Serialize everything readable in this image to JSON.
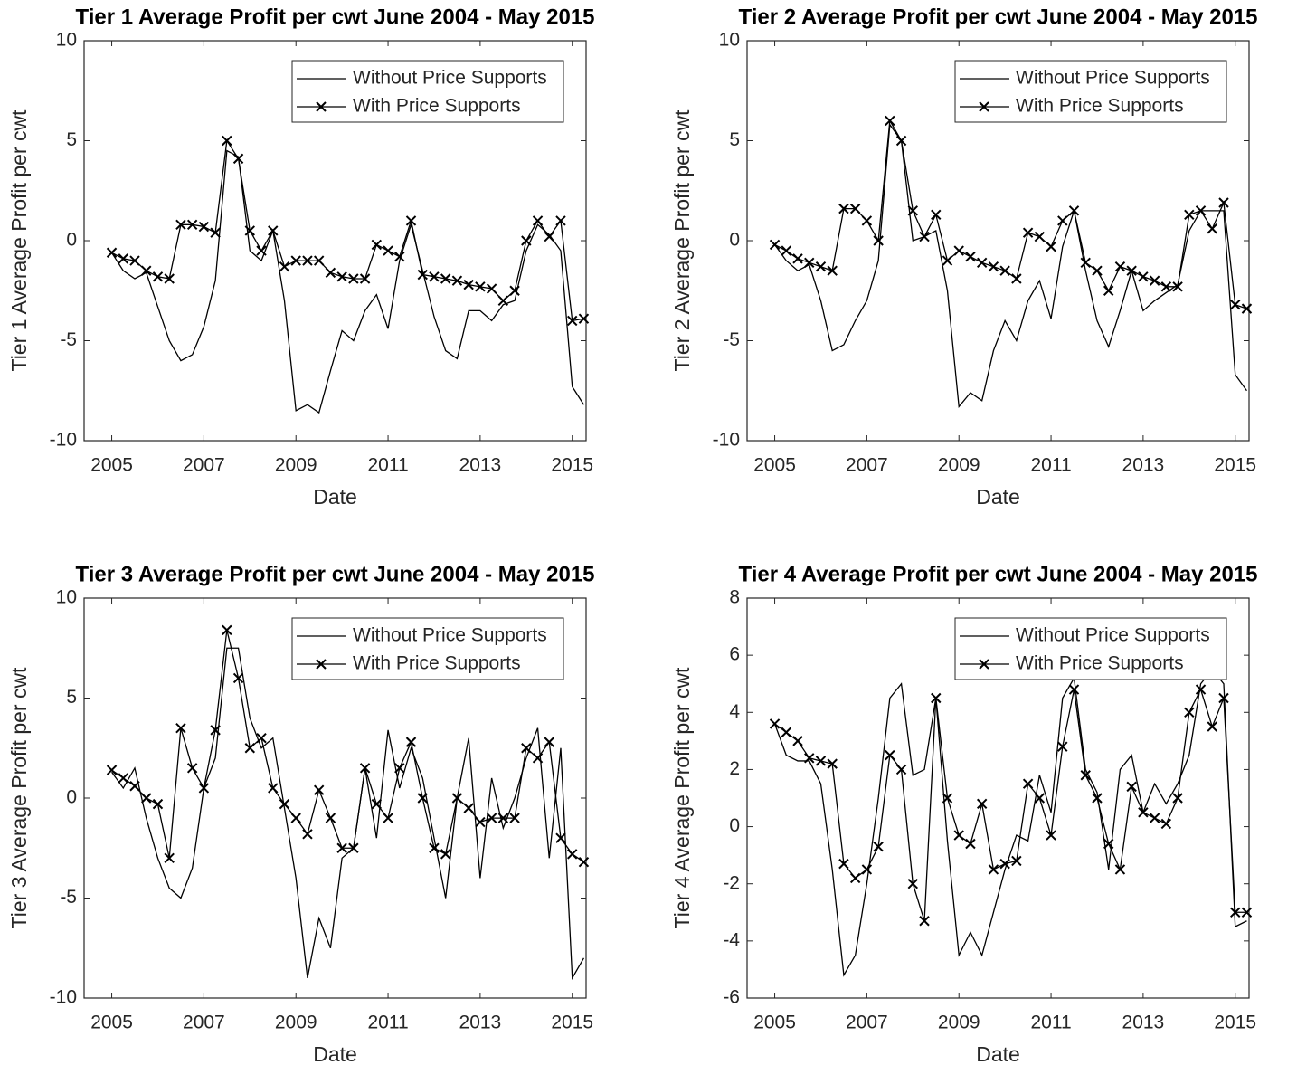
{
  "chart_data": [
    {
      "type": "line",
      "title": "Tier 1 Average Profit per cwt June 2004 - May 2015",
      "xlabel": "Date",
      "ylabel": "Tier 1 Average Profit per cwt",
      "xlim": [
        2004.4,
        2015.3
      ],
      "xticks": [
        2005,
        2007,
        2009,
        2011,
        2013,
        2015
      ],
      "ylim": [
        -10,
        10
      ],
      "yticks": [
        -10,
        -5,
        0,
        5,
        10
      ],
      "legend": "upper right",
      "x": [
        2005,
        2005.25,
        2005.5,
        2005.75,
        2006,
        2006.25,
        2006.5,
        2006.75,
        2007,
        2007.25,
        2007.5,
        2007.75,
        2008,
        2008.25,
        2008.5,
        2008.75,
        2009,
        2009.25,
        2009.5,
        2009.75,
        2010,
        2010.25,
        2010.5,
        2010.75,
        2011,
        2011.25,
        2011.5,
        2011.75,
        2012,
        2012.25,
        2012.5,
        2012.75,
        2013,
        2013.25,
        2013.5,
        2013.75,
        2014,
        2014.25,
        2014.5,
        2014.75,
        2015,
        2015.25
      ],
      "series": [
        {
          "name": "Without Price Supports",
          "color": "#000000",
          "marker": "none",
          "values": [
            -0.6,
            -1.5,
            -1.9,
            -1.6,
            -3.3,
            -5.0,
            -6.0,
            -5.7,
            -4.3,
            -2.0,
            4.5,
            4.2,
            -0.5,
            -1.0,
            0.5,
            -3.0,
            -8.5,
            -8.2,
            -8.6,
            -6.5,
            -4.5,
            -5.0,
            -3.5,
            -2.7,
            -4.4,
            -1.0,
            0.8,
            -1.5,
            -3.8,
            -5.5,
            -5.9,
            -3.5,
            -3.5,
            -4.0,
            -3.2,
            -3.0,
            -0.5,
            0.8,
            0.3,
            -0.5,
            -7.3,
            -8.2
          ]
        },
        {
          "name": "With Price Supports",
          "color": "#000000",
          "marker": "x",
          "values": [
            -0.6,
            -0.9,
            -1.0,
            -1.5,
            -1.8,
            -1.9,
            0.8,
            0.8,
            0.7,
            0.4,
            5.0,
            4.1,
            0.5,
            -0.5,
            0.5,
            -1.3,
            -1.0,
            -1.0,
            -1.0,
            -1.6,
            -1.8,
            -1.9,
            -1.9,
            -0.2,
            -0.5,
            -0.8,
            1.0,
            -1.7,
            -1.8,
            -1.9,
            -2.0,
            -2.2,
            -2.3,
            -2.4,
            -3.0,
            -2.5,
            0.0,
            1.0,
            0.2,
            1.0,
            -4.0,
            -3.9
          ]
        }
      ]
    },
    {
      "type": "line",
      "title": "Tier 2 Average Profit per cwt June 2004 - May 2015",
      "xlabel": "Date",
      "ylabel": "Tier 2 Average Profit per cwt",
      "xlim": [
        2004.4,
        2015.3
      ],
      "xticks": [
        2005,
        2007,
        2009,
        2011,
        2013,
        2015
      ],
      "ylim": [
        -10,
        10
      ],
      "yticks": [
        -10,
        -5,
        0,
        5,
        10
      ],
      "legend": "upper right",
      "x": [
        2005,
        2005.25,
        2005.5,
        2005.75,
        2006,
        2006.25,
        2006.5,
        2006.75,
        2007,
        2007.25,
        2007.5,
        2007.75,
        2008,
        2008.25,
        2008.5,
        2008.75,
        2009,
        2009.25,
        2009.5,
        2009.75,
        2010,
        2010.25,
        2010.5,
        2010.75,
        2011,
        2011.25,
        2011.5,
        2011.75,
        2012,
        2012.25,
        2012.5,
        2012.75,
        2013,
        2013.25,
        2013.5,
        2013.75,
        2014,
        2014.25,
        2014.5,
        2014.75,
        2015,
        2015.25
      ],
      "series": [
        {
          "name": "Without Price Supports",
          "color": "#000000",
          "marker": "none",
          "values": [
            -0.2,
            -1.0,
            -1.5,
            -1.2,
            -3.0,
            -5.5,
            -5.2,
            -4.0,
            -3.0,
            -1.0,
            5.8,
            5.0,
            0.0,
            0.2,
            0.5,
            -2.5,
            -8.3,
            -7.6,
            -8.0,
            -5.5,
            -4.0,
            -5.0,
            -3.0,
            -2.0,
            -3.9,
            -0.3,
            1.5,
            -1.5,
            -4.0,
            -5.3,
            -3.5,
            -1.5,
            -3.5,
            -3.0,
            -2.6,
            -2.2,
            0.5,
            1.5,
            1.5,
            1.5,
            -6.7,
            -7.5
          ]
        },
        {
          "name": "With Price Supports",
          "color": "#000000",
          "marker": "x",
          "values": [
            -0.2,
            -0.5,
            -0.9,
            -1.1,
            -1.3,
            -1.5,
            1.6,
            1.6,
            1.0,
            0.0,
            6.0,
            5.0,
            1.5,
            0.2,
            1.3,
            -1.0,
            -0.5,
            -0.8,
            -1.1,
            -1.3,
            -1.5,
            -1.9,
            0.4,
            0.2,
            -0.3,
            1.0,
            1.5,
            -1.1,
            -1.5,
            -2.5,
            -1.3,
            -1.5,
            -1.8,
            -2.0,
            -2.3,
            -2.3,
            1.3,
            1.5,
            0.6,
            1.9,
            -3.2,
            -3.4
          ]
        }
      ]
    },
    {
      "type": "line",
      "title": "Tier 3 Average Profit per cwt June 2004 - May 2015",
      "xlabel": "Date",
      "ylabel": "Tier 3 Average Profit per cwt",
      "xlim": [
        2004.4,
        2015.3
      ],
      "xticks": [
        2005,
        2007,
        2009,
        2011,
        2013,
        2015
      ],
      "ylim": [
        -10,
        10
      ],
      "yticks": [
        -10,
        -5,
        0,
        5,
        10
      ],
      "legend": "upper right",
      "x": [
        2005,
        2005.25,
        2005.5,
        2005.75,
        2006,
        2006.25,
        2006.5,
        2006.75,
        2007,
        2007.25,
        2007.5,
        2007.75,
        2008,
        2008.25,
        2008.5,
        2008.75,
        2009,
        2009.25,
        2009.5,
        2009.75,
        2010,
        2010.25,
        2010.5,
        2010.75,
        2011,
        2011.25,
        2011.5,
        2011.75,
        2012,
        2012.25,
        2012.5,
        2012.75,
        2013,
        2013.25,
        2013.5,
        2013.75,
        2014,
        2014.25,
        2014.5,
        2014.75,
        2015,
        2015.25
      ],
      "series": [
        {
          "name": "Without Price Supports",
          "color": "#000000",
          "marker": "none",
          "values": [
            1.3,
            0.5,
            1.5,
            -1.0,
            -3.0,
            -4.5,
            -5.0,
            -3.5,
            0.5,
            2.0,
            7.5,
            7.5,
            4.0,
            2.5,
            3.0,
            -0.5,
            -4.0,
            -9.0,
            -6.0,
            -7.5,
            -3.0,
            -2.5,
            1.5,
            -2.0,
            3.4,
            0.5,
            2.5,
            1.0,
            -2.0,
            -5.0,
            0.0,
            3.0,
            -4.0,
            1.0,
            -1.5,
            0.0,
            2.0,
            3.5,
            -3.0,
            2.5,
            -9.0,
            -8.0
          ]
        },
        {
          "name": "With Price Supports",
          "color": "#000000",
          "marker": "x",
          "values": [
            1.4,
            1.0,
            0.6,
            0.0,
            -0.3,
            -3.0,
            3.5,
            1.5,
            0.5,
            3.4,
            8.4,
            6.0,
            2.5,
            3.0,
            0.5,
            -0.3,
            -1.0,
            -1.8,
            0.4,
            -1.0,
            -2.5,
            -2.5,
            1.5,
            -0.3,
            -1.0,
            1.5,
            2.8,
            0.0,
            -2.5,
            -2.8,
            0.0,
            -0.5,
            -1.2,
            -1.0,
            -1.0,
            -1.0,
            2.5,
            2.0,
            2.8,
            -2.0,
            -2.8,
            -3.2
          ]
        }
      ]
    },
    {
      "type": "line",
      "title": "Tier 4 Average Profit per cwt June 2004 - May 2015",
      "xlabel": "Date",
      "ylabel": "Tier 4 Average Profit per cwt",
      "xlim": [
        2004.4,
        2015.3
      ],
      "xticks": [
        2005,
        2007,
        2009,
        2011,
        2013,
        2015
      ],
      "ylim": [
        -6,
        8
      ],
      "yticks": [
        -6,
        -4,
        -2,
        0,
        2,
        4,
        6,
        8
      ],
      "legend": "upper right",
      "x": [
        2005,
        2005.25,
        2005.5,
        2005.75,
        2006,
        2006.25,
        2006.5,
        2006.75,
        2007,
        2007.25,
        2007.5,
        2007.75,
        2008,
        2008.25,
        2008.5,
        2008.75,
        2009,
        2009.25,
        2009.5,
        2009.75,
        2010,
        2010.25,
        2010.5,
        2010.75,
        2011,
        2011.25,
        2011.5,
        2011.75,
        2012,
        2012.25,
        2012.5,
        2012.75,
        2013,
        2013.25,
        2013.5,
        2013.75,
        2014,
        2014.25,
        2014.5,
        2014.75,
        2015,
        2015.25
      ],
      "series": [
        {
          "name": "Without Price Supports",
          "color": "#000000",
          "marker": "none",
          "values": [
            3.6,
            2.5,
            2.3,
            2.3,
            1.5,
            -1.5,
            -5.2,
            -4.5,
            -2.0,
            1.0,
            4.5,
            5.0,
            1.8,
            2.0,
            4.5,
            -0.5,
            -4.5,
            -3.7,
            -4.5,
            -3.0,
            -1.5,
            -0.3,
            -0.5,
            1.8,
            0.5,
            4.5,
            5.2,
            2.0,
            1.2,
            -1.5,
            2.0,
            2.5,
            0.5,
            1.5,
            0.8,
            1.5,
            2.5,
            5.0,
            5.5,
            5.0,
            -3.5,
            -3.3
          ]
        },
        {
          "name": "With Price Supports",
          "color": "#000000",
          "marker": "x",
          "values": [
            3.6,
            3.3,
            3.0,
            2.4,
            2.3,
            2.2,
            -1.3,
            -1.8,
            -1.5,
            -0.7,
            2.5,
            2.0,
            -2.0,
            -3.3,
            4.5,
            1.0,
            -0.3,
            -0.6,
            0.8,
            -1.5,
            -1.3,
            -1.2,
            1.5,
            1.0,
            -0.3,
            2.8,
            4.8,
            1.8,
            1.0,
            -0.6,
            -1.5,
            1.4,
            0.5,
            0.3,
            0.1,
            1.0,
            4.0,
            4.8,
            3.5,
            4.5,
            -3.0,
            -3.0
          ]
        }
      ]
    }
  ]
}
